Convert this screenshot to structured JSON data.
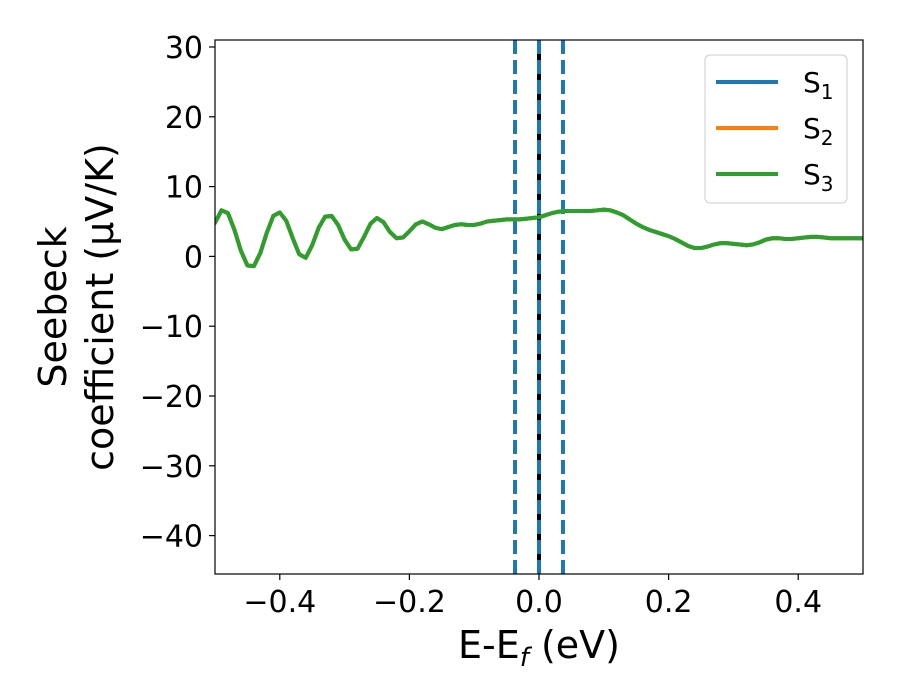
{
  "chart_data": {
    "type": "line",
    "xlabel": {
      "main": "E-E",
      "sub": "f",
      "rest": " (eV)"
    },
    "ylabel": {
      "line1": "Seebeck",
      "line2": "coefficient  (μV/K)"
    },
    "xlim": [
      -0.5,
      0.5
    ],
    "ylim": [
      -45.5,
      31
    ],
    "xticks": [
      -0.4,
      -0.2,
      0.0,
      0.2,
      0.4
    ],
    "xtick_labels": [
      "−0.4",
      "−0.2",
      "0.0",
      "0.2",
      "0.4"
    ],
    "yticks": [
      -40,
      -30,
      -20,
      -10,
      0,
      10,
      20,
      30
    ],
    "ytick_labels": [
      "−40",
      "−30",
      "−20",
      "−10",
      "0",
      "10",
      "20",
      "30"
    ],
    "grid": false,
    "legend_position": "top-right",
    "vlines": [
      {
        "x": -0.037,
        "style": "dashed",
        "color": "#1f77b4"
      },
      {
        "x": 0.0,
        "style": "solid",
        "color": "#000000"
      },
      {
        "x": 0.0,
        "style": "dashed",
        "color": "#1f77b4"
      },
      {
        "x": 0.037,
        "style": "dashed",
        "color": "#1f77b4"
      }
    ],
    "x": [
      -0.5,
      -0.49,
      -0.48,
      -0.47,
      -0.46,
      -0.45,
      -0.44,
      -0.43,
      -0.42,
      -0.41,
      -0.4,
      -0.39,
      -0.38,
      -0.37,
      -0.36,
      -0.35,
      -0.34,
      -0.33,
      -0.32,
      -0.31,
      -0.3,
      -0.29,
      -0.28,
      -0.27,
      -0.26,
      -0.25,
      -0.24,
      -0.23,
      -0.22,
      -0.21,
      -0.2,
      -0.19,
      -0.18,
      -0.17,
      -0.16,
      -0.15,
      -0.14,
      -0.13,
      -0.12,
      -0.11,
      -0.1,
      -0.09,
      -0.08,
      -0.07,
      -0.06,
      -0.05,
      -0.04,
      -0.03,
      -0.02,
      -0.01,
      0.0,
      0.01,
      0.02,
      0.03,
      0.04,
      0.05,
      0.06,
      0.07,
      0.08,
      0.09,
      0.1,
      0.11,
      0.12,
      0.13,
      0.14,
      0.15,
      0.16,
      0.17,
      0.18,
      0.19,
      0.2,
      0.21,
      0.22,
      0.23,
      0.24,
      0.25,
      0.26,
      0.27,
      0.28,
      0.29,
      0.3,
      0.31,
      0.32,
      0.33,
      0.34,
      0.35,
      0.36,
      0.37,
      0.38,
      0.39,
      0.4,
      0.41,
      0.42,
      0.43,
      0.44,
      0.45,
      0.46,
      0.47,
      0.48,
      0.49,
      0.5
    ],
    "series": [
      {
        "name_main": "S",
        "name_sub": "1",
        "color": "#1f77b4",
        "values": [
          4.8,
          6.6,
          6.2,
          3.8,
          0.8,
          -1.3,
          -1.4,
          0.5,
          3.4,
          5.8,
          6.3,
          5.1,
          2.6,
          0.3,
          -0.2,
          1.6,
          4.1,
          5.7,
          5.8,
          4.5,
          2.4,
          1.0,
          1.1,
          2.8,
          4.7,
          5.5,
          4.9,
          3.5,
          2.6,
          2.7,
          3.6,
          4.6,
          5.0,
          4.6,
          4.1,
          3.9,
          4.2,
          4.5,
          4.6,
          4.5,
          4.5,
          4.7,
          5.0,
          5.1,
          5.2,
          5.3,
          5.3,
          5.3,
          5.4,
          5.5,
          5.6,
          5.9,
          6.2,
          6.4,
          6.5,
          6.5,
          6.5,
          6.5,
          6.5,
          6.6,
          6.7,
          6.6,
          6.3,
          5.9,
          5.3,
          4.7,
          4.2,
          3.8,
          3.5,
          3.2,
          2.9,
          2.5,
          2.0,
          1.5,
          1.2,
          1.2,
          1.4,
          1.7,
          1.9,
          1.9,
          1.8,
          1.7,
          1.6,
          1.7,
          2.0,
          2.4,
          2.6,
          2.6,
          2.5,
          2.5,
          2.6,
          2.7,
          2.8,
          2.8,
          2.7,
          2.6,
          2.6,
          2.6,
          2.6,
          2.6,
          2.6
        ]
      },
      {
        "name_main": "S",
        "name_sub": "2",
        "color": "#ff7f0e",
        "values": [
          4.8,
          6.6,
          6.2,
          3.8,
          0.8,
          -1.3,
          -1.4,
          0.5,
          3.4,
          5.8,
          6.3,
          5.1,
          2.6,
          0.3,
          -0.2,
          1.6,
          4.1,
          5.7,
          5.8,
          4.5,
          2.4,
          1.0,
          1.1,
          2.8,
          4.7,
          5.5,
          4.9,
          3.5,
          2.6,
          2.7,
          3.6,
          4.6,
          5.0,
          4.6,
          4.1,
          3.9,
          4.2,
          4.5,
          4.6,
          4.5,
          4.5,
          4.7,
          5.0,
          5.1,
          5.2,
          5.3,
          5.3,
          5.3,
          5.4,
          5.5,
          5.6,
          5.9,
          6.2,
          6.4,
          6.5,
          6.5,
          6.5,
          6.5,
          6.5,
          6.6,
          6.7,
          6.6,
          6.3,
          5.9,
          5.3,
          4.7,
          4.2,
          3.8,
          3.5,
          3.2,
          2.9,
          2.5,
          2.0,
          1.5,
          1.2,
          1.2,
          1.4,
          1.7,
          1.9,
          1.9,
          1.8,
          1.7,
          1.6,
          1.7,
          2.0,
          2.4,
          2.6,
          2.6,
          2.5,
          2.5,
          2.6,
          2.7,
          2.8,
          2.8,
          2.7,
          2.6,
          2.6,
          2.6,
          2.6,
          2.6,
          2.6
        ]
      },
      {
        "name_main": "S",
        "name_sub": "3",
        "color": "#2ca02c",
        "values": [
          4.8,
          6.6,
          6.2,
          3.8,
          0.8,
          -1.3,
          -1.4,
          0.5,
          3.4,
          5.8,
          6.3,
          5.1,
          2.6,
          0.3,
          -0.2,
          1.6,
          4.1,
          5.7,
          5.8,
          4.5,
          2.4,
          1.0,
          1.1,
          2.8,
          4.7,
          5.5,
          4.9,
          3.5,
          2.6,
          2.7,
          3.6,
          4.6,
          5.0,
          4.6,
          4.1,
          3.9,
          4.2,
          4.5,
          4.6,
          4.5,
          4.5,
          4.7,
          5.0,
          5.1,
          5.2,
          5.3,
          5.3,
          5.3,
          5.4,
          5.5,
          5.6,
          5.9,
          6.2,
          6.4,
          6.5,
          6.5,
          6.5,
          6.5,
          6.5,
          6.6,
          6.7,
          6.6,
          6.3,
          5.9,
          5.3,
          4.7,
          4.2,
          3.8,
          3.5,
          3.2,
          2.9,
          2.5,
          2.0,
          1.5,
          1.2,
          1.2,
          1.4,
          1.7,
          1.9,
          1.9,
          1.8,
          1.7,
          1.6,
          1.7,
          2.0,
          2.4,
          2.6,
          2.6,
          2.5,
          2.5,
          2.6,
          2.7,
          2.8,
          2.8,
          2.7,
          2.6,
          2.6,
          2.6,
          2.6,
          2.6,
          2.6
        ]
      }
    ]
  }
}
